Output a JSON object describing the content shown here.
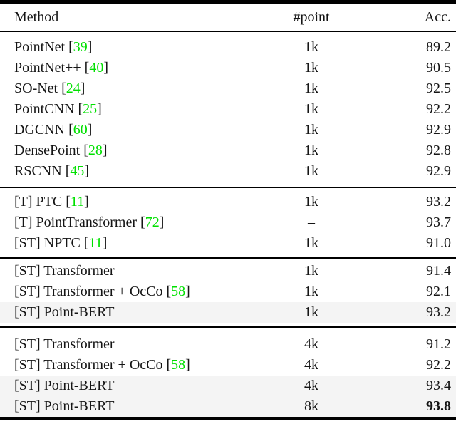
{
  "colors": {
    "citation_green": "#00e000",
    "highlight_bg": "#f4f4f4",
    "rule_black": "#000000",
    "text": "#151515"
  },
  "header": {
    "method": "Method",
    "points": "#point",
    "acc": "Acc."
  },
  "sections": [
    {
      "rows": [
        {
          "pre": "PointNet [",
          "cite": "39",
          "post": "]",
          "points": "1k",
          "acc": "89.2",
          "highlight": false,
          "bold_acc": false
        },
        {
          "pre": "PointNet++ [",
          "cite": "40",
          "post": "]",
          "points": "1k",
          "acc": "90.5",
          "highlight": false,
          "bold_acc": false
        },
        {
          "pre": "SO-Net [",
          "cite": "24",
          "post": "]",
          "points": "1k",
          "acc": "92.5",
          "highlight": false,
          "bold_acc": false
        },
        {
          "pre": "PointCNN [",
          "cite": "25",
          "post": "]",
          "points": "1k",
          "acc": "92.2",
          "highlight": false,
          "bold_acc": false
        },
        {
          "pre": "DGCNN [",
          "cite": "60",
          "post": "]",
          "points": "1k",
          "acc": "92.9",
          "highlight": false,
          "bold_acc": false
        },
        {
          "pre": "DensePoint [",
          "cite": "28",
          "post": "]",
          "points": "1k",
          "acc": "92.8",
          "highlight": false,
          "bold_acc": false
        },
        {
          "pre": "RSCNN [",
          "cite": "45",
          "post": "]",
          "points": "1k",
          "acc": "92.9",
          "highlight": false,
          "bold_acc": false
        }
      ]
    },
    {
      "rows": [
        {
          "pre": "[T] PTC [",
          "cite": "11",
          "post": "]",
          "points": "1k",
          "acc": "93.2",
          "highlight": false,
          "bold_acc": false
        },
        {
          "pre": "[T] PointTransformer [",
          "cite": "72",
          "post": "]",
          "points": "–",
          "acc": "93.7",
          "highlight": false,
          "bold_acc": false
        },
        {
          "pre": "[ST] NPTC [",
          "cite": "11",
          "post": "]",
          "points": "1k",
          "acc": "91.0",
          "highlight": false,
          "bold_acc": false
        }
      ]
    },
    {
      "rows": [
        {
          "pre": "[ST] Transformer",
          "cite": "",
          "post": "",
          "points": "1k",
          "acc": "91.4",
          "highlight": false,
          "bold_acc": false
        },
        {
          "pre": "[ST] Transformer + OcCo [",
          "cite": "58",
          "post": "]",
          "points": "1k",
          "acc": "92.1",
          "highlight": false,
          "bold_acc": false
        },
        {
          "pre": "[ST] Point-BERT",
          "cite": "",
          "post": "",
          "points": "1k",
          "acc": "93.2",
          "highlight": true,
          "bold_acc": false
        }
      ]
    },
    {
      "rows": [
        {
          "pre": "[ST] Transformer",
          "cite": "",
          "post": "",
          "points": "4k",
          "acc": "91.2",
          "highlight": false,
          "bold_acc": false
        },
        {
          "pre": "[ST] Transformer + OcCo [",
          "cite": "58",
          "post": "]",
          "points": "4k",
          "acc": "92.2",
          "highlight": false,
          "bold_acc": false
        },
        {
          "pre": "[ST] Point-BERT",
          "cite": "",
          "post": "",
          "points": "4k",
          "acc": "93.4",
          "highlight": true,
          "bold_acc": false
        },
        {
          "pre": "[ST] Point-BERT",
          "cite": "",
          "post": "",
          "points": "8k",
          "acc": "93.8",
          "highlight": true,
          "bold_acc": true
        }
      ]
    }
  ]
}
